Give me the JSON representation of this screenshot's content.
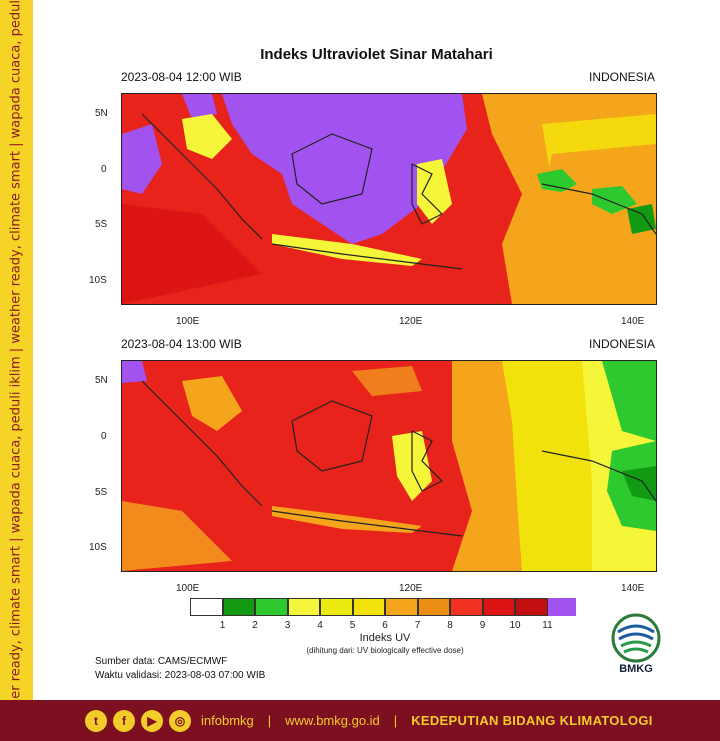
{
  "sidebar": {
    "tagline": "weather ready, climate smart | wapada cuaca, peduli iklim | weather ready, climate smart | wapada cuaca, peduli iklim"
  },
  "header": {
    "title": "Indeks Ultraviolet Sinar Matahari"
  },
  "panels": [
    {
      "datetime": "2023-08-04  12:00 WIB",
      "region": "INDONESIA"
    },
    {
      "datetime": "2023-08-04  13:00 WIB",
      "region": "INDONESIA"
    }
  ],
  "axes": {
    "lat_labels": [
      "5N",
      "0",
      "5S",
      "10S"
    ],
    "lon_labels": [
      "100E",
      "120E",
      "140E"
    ]
  },
  "legend": {
    "title": "Indeks UV",
    "subtitle": "(dihitung dari: UV biologically effective dose)",
    "ticks": [
      "1",
      "2",
      "3",
      "4",
      "5",
      "6",
      "7",
      "8",
      "9",
      "10",
      "11"
    ],
    "colors": [
      "#ffffff",
      "#139a13",
      "#2ec92e",
      "#f5f53a",
      "#eaea10",
      "#f2e20c",
      "#f4a51c",
      "#ec8e14",
      "#f03020",
      "#dd1414",
      "#c10f0f",
      "#a252ef"
    ]
  },
  "source": {
    "data_line": "Sumber data: CAMS/ECMWF",
    "validity_line": "Waktu validasi: 2023-08-03 07:00 WIB"
  },
  "logo": {
    "name": "BMKG"
  },
  "footer": {
    "social_handle": "infobmkg",
    "website": "www.bmkg.go.id",
    "department": "KEDEPUTIAN BIDANG KLIMATOLOGI",
    "icons": [
      "twitter-icon",
      "facebook-icon",
      "youtube-icon",
      "instagram-icon"
    ]
  }
}
